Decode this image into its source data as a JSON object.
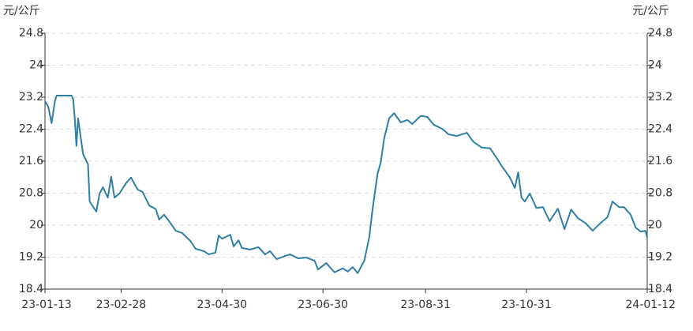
{
  "chart_data": {
    "type": "line",
    "y_label": "元/公斤",
    "y2_label": "元/公斤",
    "color": "#2f7ea3",
    "x": [
      "23-01-13",
      "23-01-15",
      "23-01-17",
      "23-01-19",
      "23-01-20",
      "23-01-29",
      "23-01-30",
      "23-01-31",
      "23-02-01",
      "23-02-02",
      "23-02-05",
      "23-02-08",
      "23-02-09",
      "23-02-13",
      "23-02-15",
      "23-02-17",
      "23-02-20",
      "23-02-22",
      "23-02-24",
      "23-02-27",
      "23-03-03",
      "23-03-06",
      "23-03-10",
      "23-03-13",
      "23-03-17",
      "23-03-21",
      "23-03-23",
      "23-03-26",
      "23-03-29",
      "23-04-02",
      "23-04-06",
      "23-04-11",
      "23-04-14",
      "23-04-19",
      "23-04-22",
      "23-04-26",
      "23-04-28",
      "23-04-30",
      "23-05-05",
      "23-05-07",
      "23-05-10",
      "23-05-12",
      "23-05-17",
      "23-05-22",
      "23-05-26",
      "23-05-29",
      "23-06-02",
      "23-06-06",
      "23-06-10",
      "23-06-15",
      "23-06-20",
      "23-06-25",
      "23-06-27",
      "23-07-02",
      "23-07-07",
      "23-07-12",
      "23-07-15",
      "23-07-18",
      "23-07-21",
      "23-07-25",
      "23-07-28",
      "23-07-30",
      "23-08-02",
      "23-08-04",
      "23-08-06",
      "23-08-09",
      "23-08-12",
      "23-08-16",
      "23-08-20",
      "23-08-23",
      "23-08-28",
      "23-09-01",
      "23-09-05",
      "23-09-10",
      "23-09-14",
      "23-09-19",
      "23-09-25",
      "23-09-29",
      "23-10-04",
      "23-10-09",
      "23-10-13",
      "23-10-16",
      "23-10-21",
      "23-10-24",
      "23-10-26",
      "23-10-28",
      "23-10-30",
      "23-11-02",
      "23-11-06",
      "23-11-10",
      "23-11-14",
      "23-11-19",
      "23-11-23",
      "23-11-27",
      "23-12-01",
      "23-12-06",
      "23-12-10",
      "23-12-15",
      "23-12-19",
      "23-12-22",
      "23-12-26",
      "23-12-29",
      "24-01-02",
      "24-01-05",
      "24-01-08",
      "24-01-11",
      "24-01-12"
    ],
    "values": [
      23.1,
      22.96,
      22.55,
      23.1,
      23.24,
      23.24,
      23.16,
      22.67,
      21.98,
      22.67,
      21.78,
      21.52,
      20.59,
      20.34,
      20.79,
      20.95,
      20.69,
      21.21,
      20.69,
      20.79,
      21.05,
      21.19,
      20.89,
      20.83,
      20.49,
      20.4,
      20.14,
      20.26,
      20.1,
      19.86,
      19.8,
      19.6,
      19.41,
      19.35,
      19.27,
      19.31,
      19.74,
      19.66,
      19.76,
      19.47,
      19.62,
      19.43,
      19.39,
      19.45,
      19.27,
      19.35,
      19.15,
      19.21,
      19.27,
      19.17,
      19.19,
      19.11,
      18.89,
      19.05,
      18.82,
      18.92,
      18.84,
      18.95,
      18.8,
      19.11,
      19.7,
      20.4,
      21.28,
      21.58,
      22.17,
      22.67,
      22.8,
      22.57,
      22.63,
      22.53,
      22.73,
      22.71,
      22.51,
      22.41,
      22.27,
      22.23,
      22.31,
      22.08,
      21.94,
      21.92,
      21.68,
      21.48,
      21.19,
      20.93,
      21.32,
      20.69,
      20.59,
      20.79,
      20.43,
      20.45,
      20.1,
      20.41,
      19.9,
      20.39,
      20.18,
      20.04,
      19.86,
      20.06,
      20.2,
      20.59,
      20.45,
      20.45,
      20.26,
      19.94,
      19.84,
      19.86,
      19.68
    ],
    "xlim": [
      "23-01-13",
      "24-01-12"
    ],
    "xticks": [
      "23-01-13",
      "23-02-28",
      "23-04-30",
      "23-06-30",
      "23-08-31",
      "23-10-31",
      "24-01-12"
    ],
    "ylim": [
      18.4,
      24.8
    ],
    "yticks": [
      18.4,
      19.2,
      20,
      20.8,
      21.6,
      22.4,
      23.2,
      24,
      24.8
    ],
    "y2lim": [
      18.4,
      24.8
    ],
    "y2ticks": [
      18.4,
      19.2,
      20,
      20.8,
      21.6,
      22.4,
      23.2,
      24,
      24.8
    ],
    "grid": true
  }
}
